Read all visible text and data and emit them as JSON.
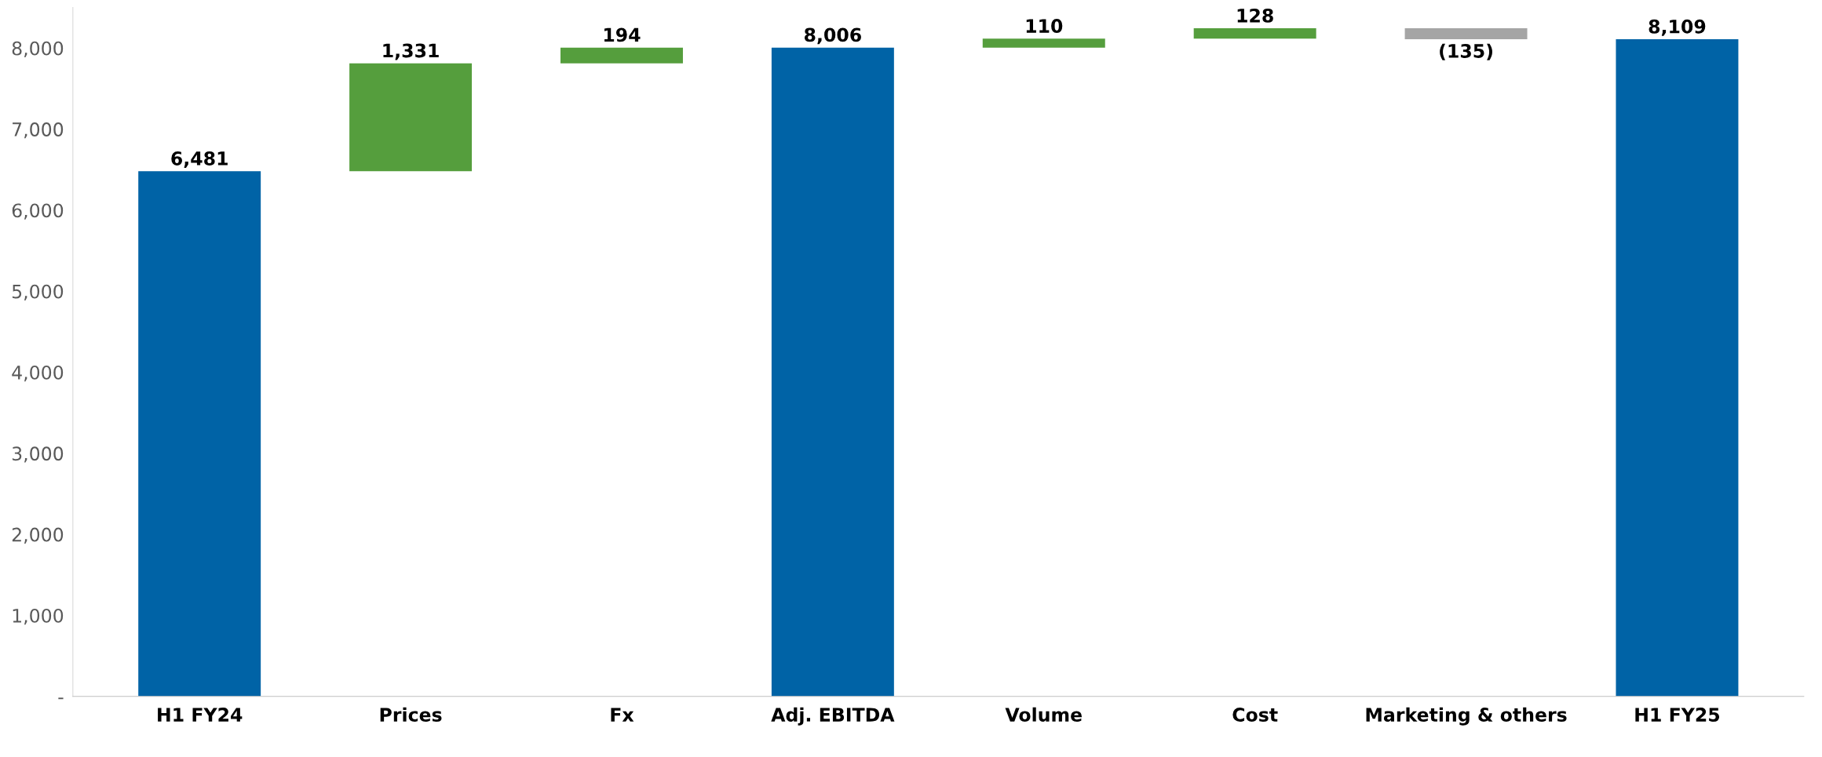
{
  "chart_data": {
    "type": "bar",
    "categories": [
      "H1 FY24",
      "Prices",
      "Fx",
      "Adj. EBITDA",
      "Volume",
      "Cost",
      "Marketing & others",
      "H1 FY25"
    ],
    "values": [
      6481,
      1331,
      194,
      8006,
      110,
      128,
      -135,
      8109
    ],
    "base": [
      0,
      6481,
      7812,
      0,
      8006,
      8116,
      8244,
      0
    ],
    "colors": [
      "#0063a6",
      "#559e3d",
      "#559e3d",
      "#0063a6",
      "#559e3d",
      "#559e3d",
      "#a5a5a5",
      "#0063a6"
    ],
    "value_labels": [
      "6,481",
      "1,331",
      "194",
      "8,006",
      "110",
      "128",
      "(135)",
      "8,109"
    ],
    "ylim": [
      0,
      8500
    ],
    "yticks": [
      {
        "value": 0,
        "label": "-"
      },
      {
        "value": 1000,
        "label": "1,000"
      },
      {
        "value": 2000,
        "label": "2,000"
      },
      {
        "value": 3000,
        "label": "3,000"
      },
      {
        "value": 4000,
        "label": "4,000"
      },
      {
        "value": 5000,
        "label": "5,000"
      },
      {
        "value": 6000,
        "label": "6,000"
      },
      {
        "value": 7000,
        "label": "7,000"
      },
      {
        "value": 8000,
        "label": "8,000"
      }
    ],
    "grid": false,
    "legend": false
  }
}
